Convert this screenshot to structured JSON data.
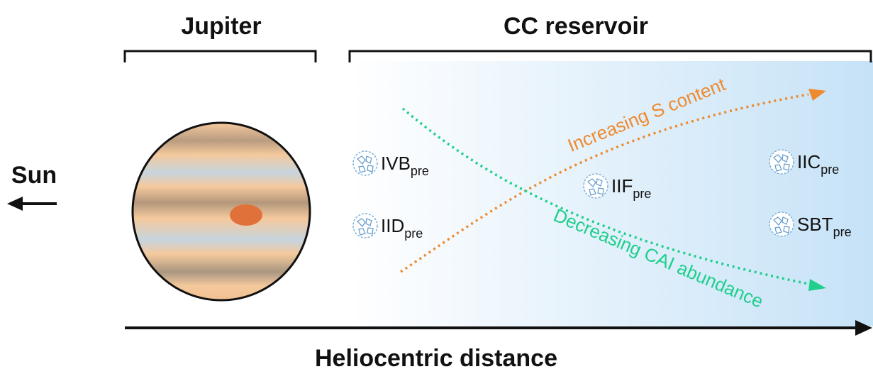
{
  "header": {
    "jupiter": "Jupiter",
    "reservoir": "CC reservoir"
  },
  "sun": "Sun",
  "axis_label": "Heliocentric distance",
  "meteorites": [
    {
      "main": "IVB",
      "sub": "pre"
    },
    {
      "main": "IID",
      "sub": "pre"
    },
    {
      "main": "IIF",
      "sub": "pre"
    },
    {
      "main": "IIC",
      "sub": "pre"
    },
    {
      "main": "SBT",
      "sub": "pre"
    }
  ],
  "trends": {
    "sulfur": "Increasing S content",
    "cai": "Decreasing CAI abundance"
  }
}
